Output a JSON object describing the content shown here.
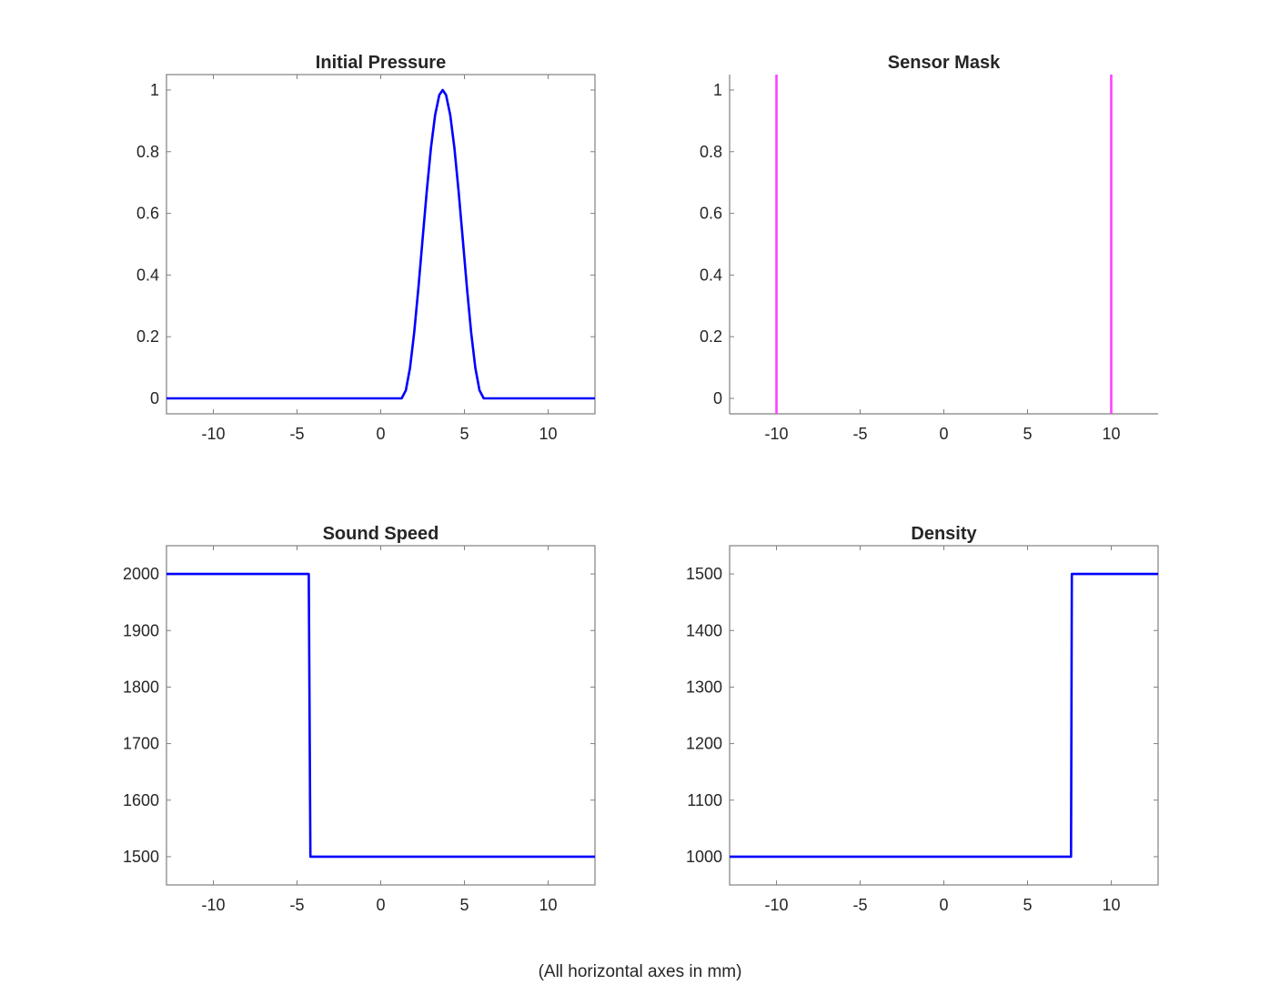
{
  "footer": "(All horizontal axes in mm)",
  "chart_data": [
    {
      "type": "line",
      "title": "Initial Pressure",
      "xlim": [
        -12.8,
        12.8
      ],
      "ylim": [
        -0.05,
        1.05
      ],
      "xticks": [
        -10,
        -5,
        0,
        5,
        10
      ],
      "yticks": [
        0,
        0.2,
        0.4,
        0.6,
        0.8,
        1
      ],
      "ytick_labels": [
        "0",
        "0.2",
        "0.4",
        "0.6",
        "0.8",
        "1"
      ],
      "box": true,
      "grid": false,
      "color": "#0000ff",
      "series": [
        {
          "x": [
            -12.8,
            1.25,
            1.5,
            1.75,
            2.0,
            2.25,
            2.5,
            2.75,
            3.0,
            3.25,
            3.5,
            3.7,
            3.9,
            4.15,
            4.4,
            4.65,
            4.9,
            5.15,
            5.4,
            5.65,
            5.9,
            6.15,
            12.8
          ],
          "y": [
            0,
            0,
            0.026,
            0.099,
            0.214,
            0.358,
            0.516,
            0.672,
            0.812,
            0.919,
            0.984,
            1,
            0.984,
            0.919,
            0.812,
            0.672,
            0.516,
            0.358,
            0.214,
            0.099,
            0.026,
            0,
            0
          ]
        }
      ]
    },
    {
      "type": "line",
      "title": "Sensor Mask",
      "xlim": [
        -12.8,
        12.8
      ],
      "ylim": [
        -0.05,
        1.05
      ],
      "xticks": [
        -10,
        -5,
        0,
        5,
        10
      ],
      "yticks": [
        0,
        0.2,
        0.4,
        0.6,
        0.8,
        1
      ],
      "ytick_labels": [
        "0",
        "0.2",
        "0.4",
        "0.6",
        "0.8",
        "1"
      ],
      "box": false,
      "grid": false,
      "color": "#ff40ff",
      "vlines": [
        -10,
        10
      ]
    },
    {
      "type": "line",
      "title": "Sound Speed",
      "xlim": [
        -12.8,
        12.8
      ],
      "ylim": [
        1450,
        2050
      ],
      "xticks": [
        -10,
        -5,
        0,
        5,
        10
      ],
      "yticks": [
        1500,
        1600,
        1700,
        1800,
        1900,
        2000
      ],
      "ytick_labels": [
        "1500",
        "1600",
        "1700",
        "1800",
        "1900",
        "2000"
      ],
      "box": true,
      "grid": false,
      "color": "#0000ff",
      "series": [
        {
          "x": [
            -12.8,
            -4.3,
            -4.2,
            12.8
          ],
          "y": [
            2000,
            2000,
            1500,
            1500
          ]
        }
      ]
    },
    {
      "type": "line",
      "title": "Density",
      "xlim": [
        -12.8,
        12.8
      ],
      "ylim": [
        950,
        1550
      ],
      "xticks": [
        -10,
        -5,
        0,
        5,
        10
      ],
      "yticks": [
        1000,
        1100,
        1200,
        1300,
        1400,
        1500
      ],
      "ytick_labels": [
        "1000",
        "1100",
        "1200",
        "1300",
        "1400",
        "1500"
      ],
      "box": true,
      "grid": false,
      "color": "#0000ff",
      "series": [
        {
          "x": [
            -12.8,
            7.6,
            7.65,
            12.8
          ],
          "y": [
            1000,
            1000,
            1500,
            1500
          ]
        }
      ]
    }
  ]
}
